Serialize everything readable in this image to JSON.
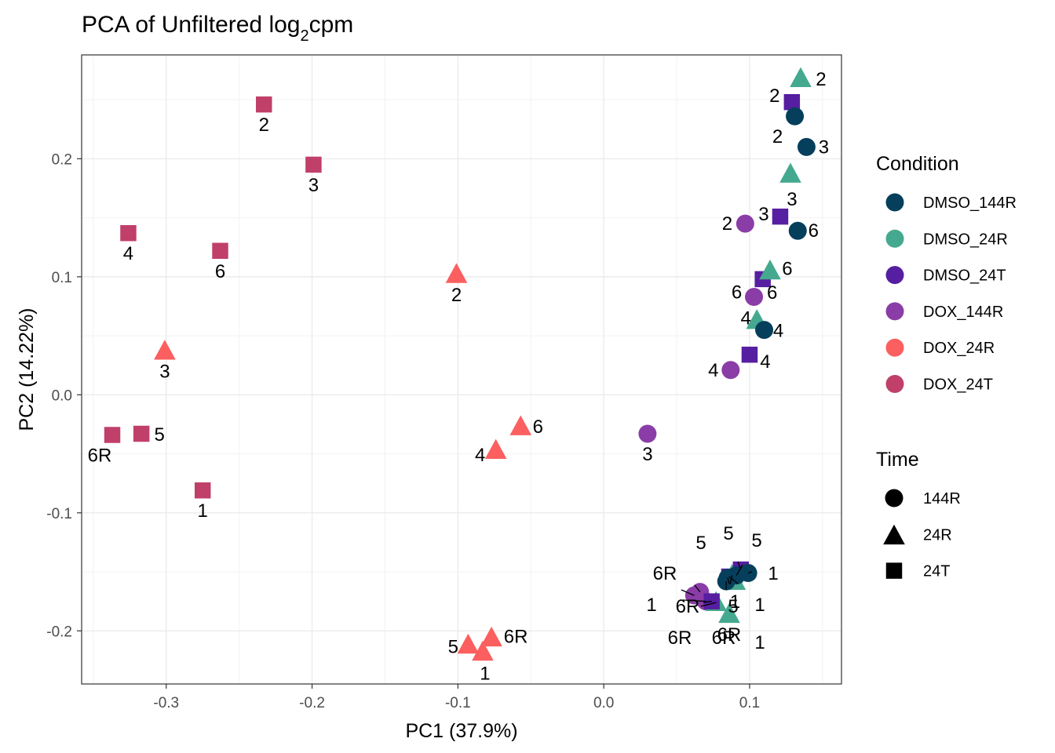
{
  "chart_data": {
    "type": "scatter",
    "title_prefix": "PCA of Unfiltered log",
    "title_subscript": "2",
    "title_suffix": "cpm",
    "xlabel": "PC1 (37.9%)",
    "ylabel": "PC2 (14.22%)",
    "xlim": [
      -0.358,
      0.163
    ],
    "ylim": [
      -0.245,
      0.288
    ],
    "xticks": [
      -0.3,
      -0.2,
      -0.1,
      0.0,
      0.1
    ],
    "xtick_labels": [
      "-0.3",
      "-0.2",
      "-0.1",
      "0.0",
      "0.1"
    ],
    "yticks": [
      -0.2,
      -0.1,
      0.0,
      0.1,
      0.2
    ],
    "ytick_labels": [
      "-0.2",
      "-0.1",
      "0.0",
      "0.1",
      "0.2"
    ],
    "grid": true,
    "legend_position": "right",
    "condition_legend": {
      "title": "Condition",
      "items": [
        {
          "label": "DMSO_144R",
          "color": "#063f5c"
        },
        {
          "label": "DMSO_24R",
          "color": "#45a98f"
        },
        {
          "label": "DMSO_24T",
          "color": "#561ea1"
        },
        {
          "label": "DOX_144R",
          "color": "#8a3da6"
        },
        {
          "label": "DOX_24R",
          "color": "#fc5f5f"
        },
        {
          "label": "DOX_24T",
          "color": "#c0406a"
        }
      ]
    },
    "time_legend": {
      "title": "Time",
      "items": [
        {
          "label": "144R",
          "shape": "circle"
        },
        {
          "label": "24R",
          "shape": "triangle"
        },
        {
          "label": "24T",
          "shape": "square"
        }
      ]
    },
    "points": [
      {
        "condition": "DOX_24T",
        "time": "24T",
        "label": "2",
        "x": -0.233,
        "y": 0.246
      },
      {
        "condition": "DOX_24T",
        "time": "24T",
        "label": "3",
        "x": -0.199,
        "y": 0.195
      },
      {
        "condition": "DOX_24T",
        "time": "24T",
        "label": "4",
        "x": -0.326,
        "y": 0.137
      },
      {
        "condition": "DOX_24T",
        "time": "24T",
        "label": "6",
        "x": -0.263,
        "y": 0.122
      },
      {
        "condition": "DOX_24T",
        "time": "24T",
        "label": "6R",
        "x": -0.337,
        "y": -0.034
      },
      {
        "condition": "DOX_24T",
        "time": "24T",
        "label": "5",
        "x": -0.317,
        "y": -0.033
      },
      {
        "condition": "DOX_24T",
        "time": "24T",
        "label": "1",
        "x": -0.275,
        "y": -0.081
      },
      {
        "condition": "DOX_24R",
        "time": "24R",
        "label": "3",
        "x": -0.301,
        "y": 0.037
      },
      {
        "condition": "DOX_24R",
        "time": "24R",
        "label": "2",
        "x": -0.101,
        "y": 0.102
      },
      {
        "condition": "DOX_24R",
        "time": "24R",
        "label": "6",
        "x": -0.057,
        "y": -0.027
      },
      {
        "condition": "DOX_24R",
        "time": "24R",
        "label": "4",
        "x": -0.074,
        "y": -0.047
      },
      {
        "condition": "DOX_24R",
        "time": "24R",
        "label": "5",
        "x": -0.093,
        "y": -0.212
      },
      {
        "condition": "DOX_24R",
        "time": "24R",
        "label": "6R",
        "x": -0.077,
        "y": -0.206
      },
      {
        "condition": "DOX_24R",
        "time": "24R",
        "label": "1",
        "x": -0.083,
        "y": -0.218
      },
      {
        "condition": "DOX_144R",
        "time": "144R",
        "label": "3",
        "x": 0.03,
        "y": -0.033
      },
      {
        "condition": "DOX_144R",
        "time": "144R",
        "label": "2",
        "x": 0.097,
        "y": 0.145
      },
      {
        "condition": "DOX_144R",
        "time": "144R",
        "label": "6",
        "x": 0.103,
        "y": 0.083
      },
      {
        "condition": "DOX_144R",
        "time": "144R",
        "label": "4",
        "x": 0.087,
        "y": 0.021
      },
      {
        "condition": "DMSO_24T",
        "time": "24T",
        "label": "2",
        "x": 0.129,
        "y": 0.248
      },
      {
        "condition": "DMSO_24T",
        "time": "24T",
        "label": "3",
        "x": 0.121,
        "y": 0.151
      },
      {
        "condition": "DMSO_24T",
        "time": "24T",
        "label": "6",
        "x": 0.109,
        "y": 0.098
      },
      {
        "condition": "DMSO_24T",
        "time": "24T",
        "label": "4",
        "x": 0.1,
        "y": 0.034
      },
      {
        "condition": "DMSO_24R",
        "time": "24R",
        "label": "2",
        "x": 0.135,
        "y": 0.268
      },
      {
        "condition": "DMSO_24R",
        "time": "24R",
        "label": "3",
        "x": 0.128,
        "y": 0.187
      },
      {
        "condition": "DMSO_24R",
        "time": "24R",
        "label": "6",
        "x": 0.114,
        "y": 0.105
      },
      {
        "condition": "DMSO_24R",
        "time": "24R",
        "label": "4",
        "x": 0.105,
        "y": 0.063
      },
      {
        "condition": "DMSO_144R",
        "time": "144R",
        "label": "2",
        "x": 0.131,
        "y": 0.236
      },
      {
        "condition": "DMSO_144R",
        "time": "144R",
        "label": "3",
        "x": 0.139,
        "y": 0.21
      },
      {
        "condition": "DMSO_144R",
        "time": "144R",
        "label": "6",
        "x": 0.133,
        "y": 0.139
      },
      {
        "condition": "DMSO_144R",
        "time": "144R",
        "label": "4",
        "x": 0.11,
        "y": 0.055
      },
      {
        "condition": "DOX_144R",
        "time": "144R",
        "label": "5",
        "x": 0.066,
        "y": -0.167
      },
      {
        "condition": "DOX_144R",
        "time": "144R",
        "label": "6R",
        "x": 0.062,
        "y": -0.17
      },
      {
        "condition": "DOX_144R",
        "time": "144R",
        "label": "1",
        "x": 0.07,
        "y": -0.175
      },
      {
        "condition": "DMSO_24R",
        "time": "24R",
        "label": "6R",
        "x": 0.077,
        "y": -0.176
      },
      {
        "condition": "DMSO_24R",
        "time": "24R",
        "label": "5",
        "x": 0.088,
        "y": -0.153
      },
      {
        "condition": "DMSO_24R",
        "time": "24R",
        "label": "6R",
        "x": 0.086,
        "y": -0.186
      },
      {
        "condition": "DMSO_24T",
        "time": "24T",
        "label": "5",
        "x": 0.094,
        "y": -0.148
      },
      {
        "condition": "DMSO_24T",
        "time": "24T",
        "label": "6R",
        "x": 0.074,
        "y": -0.175
      },
      {
        "condition": "DMSO_24T",
        "time": "24T",
        "label": "1",
        "x": 0.086,
        "y": -0.154
      },
      {
        "condition": "DMSO_144R",
        "time": "144R",
        "label": "1",
        "x": 0.099,
        "y": -0.151
      },
      {
        "condition": "DMSO_144R",
        "time": "144R",
        "label": "1",
        "x": 0.085,
        "y": -0.155
      },
      {
        "condition": "DMSO_24R",
        "time": "24R",
        "label": "1",
        "x": 0.09,
        "y": -0.158
      },
      {
        "condition": "DMSO_144R",
        "time": "144R",
        "label": "5",
        "x": 0.091,
        "y": -0.153
      },
      {
        "condition": "DMSO_144R",
        "time": "144R",
        "label": "6R",
        "x": 0.084,
        "y": -0.158
      }
    ]
  }
}
